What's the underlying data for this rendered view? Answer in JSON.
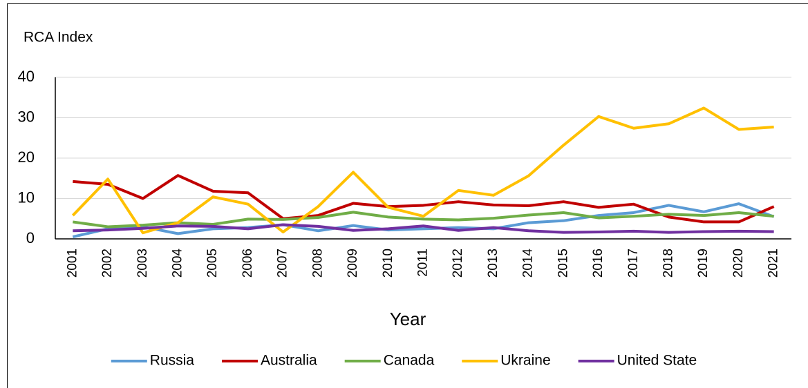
{
  "chart_data": {
    "type": "line",
    "ylabel": "RCA Index",
    "xlabel": "Year",
    "categories": [
      "2001",
      "2002",
      "2003",
      "2004",
      "2005",
      "2006",
      "2007",
      "2008",
      "2009",
      "2010",
      "2011",
      "2012",
      "2013",
      "2014",
      "2015",
      "2016",
      "2017",
      "2018",
      "2019",
      "2020",
      "2021"
    ],
    "series": [
      {
        "name": "Russia",
        "color": "#5b9bd5",
        "values": [
          0.5,
          2.5,
          3,
          1.3,
          2.5,
          2.8,
          3.5,
          2,
          3.3,
          2.2,
          2.5,
          2.8,
          2.5,
          4,
          4.5,
          5.8,
          6.5,
          8.3,
          6.7,
          8.7,
          5.5
        ]
      },
      {
        "name": "Australia",
        "color": "#c00000",
        "values": [
          14.2,
          13.5,
          10,
          15.7,
          11.8,
          11.4,
          5,
          5.8,
          8.8,
          8,
          8.3,
          9.2,
          8.4,
          8.2,
          9.2,
          7.8,
          8.6,
          5.4,
          4.2,
          4.2,
          8
        ]
      },
      {
        "name": "Canada",
        "color": "#70ad47",
        "values": [
          4.2,
          3,
          3.4,
          4,
          3.6,
          4.9,
          4.8,
          5.3,
          6.6,
          5.4,
          4.9,
          4.7,
          5.1,
          5.9,
          6.5,
          5.2,
          5.6,
          6.1,
          5.8,
          6.5,
          5.6
        ]
      },
      {
        "name": "Ukraine",
        "color": "#ffc000",
        "values": [
          5.8,
          14.8,
          1.5,
          4,
          10.4,
          8.6,
          1.7,
          8,
          16.5,
          7.8,
          5.6,
          12,
          10.8,
          15.6,
          23.2,
          30.3,
          27.4,
          28.5,
          32.4,
          27.1,
          27.7
        ]
      },
      {
        "name": "United State",
        "color": "#7030a0",
        "values": [
          2,
          2.2,
          2.6,
          3.2,
          3.1,
          2.5,
          3.5,
          3.1,
          2.1,
          2.5,
          3.2,
          2.1,
          2.8,
          2,
          1.6,
          1.7,
          1.9,
          1.6,
          1.8,
          1.9,
          1.8
        ]
      }
    ],
    "ylim": [
      0,
      40
    ],
    "yticks": [
      0,
      10,
      20,
      30,
      40
    ],
    "grid": true,
    "legend": "bottom"
  }
}
